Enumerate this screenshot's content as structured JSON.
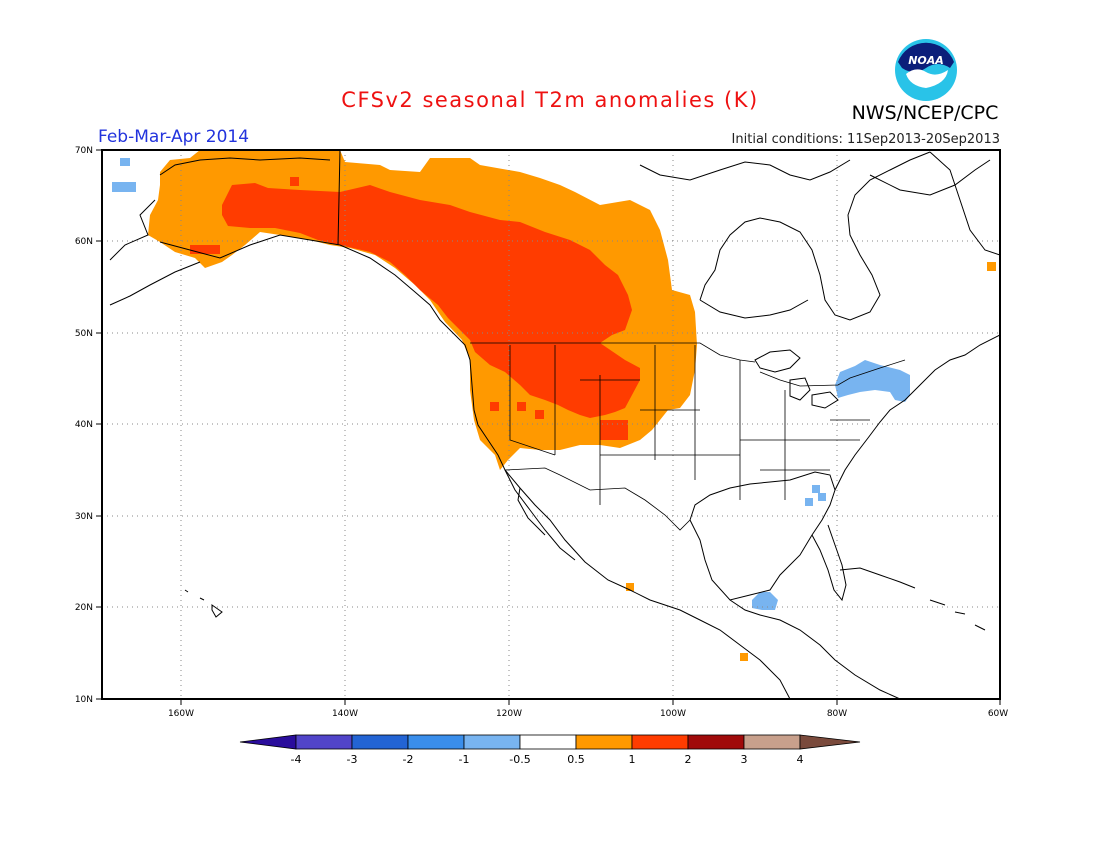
{
  "header": {
    "title": "CFSv2 seasonal T2m anomalies (K)",
    "agency": "NWS/NCEP/CPC",
    "season": "Feb-Mar-Apr 2014",
    "initial_conditions": "Initial conditions: 11Sep2013-20Sep2013",
    "logo_text": "NOAA"
  },
  "map": {
    "lat_ticks": [
      "70N",
      "60N",
      "50N",
      "40N",
      "30N",
      "20N",
      "10N"
    ],
    "lon_ticks": [
      "160W",
      "140W",
      "120W",
      "100W",
      "80W",
      "60W"
    ],
    "lon_range": [
      -172,
      -60
    ],
    "lat_range": [
      10,
      70
    ],
    "gridlines": true,
    "anomaly_regions": [
      {
        "name": "western-north-america-warm",
        "category": "0.5 to 1",
        "color": "#ff9900"
      },
      {
        "name": "canada-interior-warm",
        "category": "1 to 2",
        "color": "#ff3c00"
      },
      {
        "name": "northeast-us-cool",
        "category": "-1 to -0.5",
        "color": "#78b4f0"
      },
      {
        "name": "yucatan-cool",
        "category": "-1 to -0.5",
        "color": "#78b4f0"
      }
    ]
  },
  "colorbar": {
    "labels": [
      "-4",
      "-3",
      "-2",
      "-1",
      "-0.5",
      "0.5",
      "1",
      "2",
      "3",
      "4"
    ],
    "colors": [
      "#2a0d9c",
      "#5144c9",
      "#2364d4",
      "#3a8eeb",
      "#78b4f0",
      "#ffffff",
      "#ff9900",
      "#ff3c00",
      "#a00a0a",
      "#c8a08c",
      "#7a4a3c"
    ]
  }
}
